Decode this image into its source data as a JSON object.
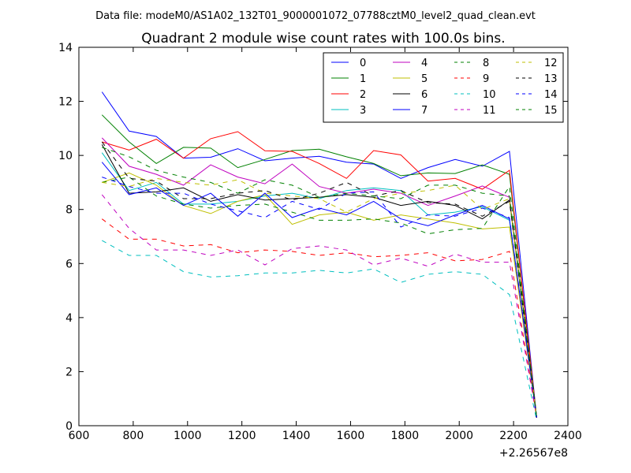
{
  "header": {
    "data_file": "Data file: modeM0/AS1A02_132T01_9000001072_07788cztM0_level2_quad_clean.evt"
  },
  "chart_data": {
    "type": "line",
    "title": "Quadrant 2 module wise count rates with 100.0s bins.",
    "xlabel": "",
    "ylabel": "",
    "x_offset_label": "+2.26567e8",
    "xlim": [
      600,
      2400
    ],
    "ylim": [
      0,
      14
    ],
    "x_ticks": [
      600,
      800,
      1000,
      1200,
      1400,
      1600,
      1800,
      2000,
      2200,
      2400
    ],
    "y_ticks": [
      0,
      2,
      4,
      6,
      8,
      10,
      12,
      14
    ],
    "grid": false,
    "legend_position": "top-right",
    "x": [
      685,
      785,
      885,
      985,
      1085,
      1185,
      1285,
      1385,
      1485,
      1585,
      1685,
      1785,
      1885,
      1985,
      2085,
      2185,
      2285
    ],
    "series": [
      {
        "name": "0",
        "color": "#0000ff",
        "dash": "solid",
        "values": [
          12.35,
          10.9,
          10.7,
          9.9,
          9.93,
          10.25,
          9.8,
          9.9,
          9.97,
          9.75,
          9.68,
          9.15,
          9.55,
          9.85,
          9.6,
          10.15,
          0.3
        ]
      },
      {
        "name": "1",
        "color": "#008000",
        "dash": "solid",
        "values": [
          11.5,
          10.5,
          9.7,
          10.3,
          10.27,
          9.55,
          9.85,
          10.18,
          10.23,
          9.95,
          9.7,
          9.25,
          9.35,
          9.33,
          9.65,
          9.3,
          0.3
        ]
      },
      {
        "name": "2",
        "color": "#ff0000",
        "dash": "solid",
        "values": [
          10.5,
          10.2,
          10.6,
          9.9,
          10.62,
          10.88,
          10.17,
          10.15,
          9.7,
          9.15,
          10.18,
          10.02,
          9.05,
          9.15,
          8.75,
          9.45,
          0.3
        ]
      },
      {
        "name": "3",
        "color": "#00bfbf",
        "dash": "solid",
        "values": [
          10.1,
          8.7,
          9.0,
          8.2,
          8.2,
          8.3,
          8.5,
          8.6,
          8.4,
          8.7,
          8.8,
          8.7,
          7.8,
          7.9,
          8.1,
          7.6,
          0.3
        ]
      },
      {
        "name": "4",
        "color": "#bf00bf",
        "dash": "solid",
        "values": [
          10.65,
          9.6,
          9.3,
          8.9,
          9.65,
          9.2,
          8.95,
          9.68,
          8.85,
          8.6,
          8.75,
          8.6,
          8.15,
          8.5,
          8.87,
          8.45,
          0.3
        ]
      },
      {
        "name": "5",
        "color": "#bfbf00",
        "dash": "solid",
        "values": [
          9.0,
          9.35,
          8.9,
          8.15,
          7.85,
          8.3,
          8.55,
          7.45,
          7.8,
          7.9,
          7.6,
          7.8,
          7.65,
          7.5,
          7.28,
          7.35,
          0.3
        ]
      },
      {
        "name": "6",
        "color": "#000000",
        "dash": "solid",
        "values": [
          10.4,
          8.6,
          8.65,
          8.8,
          8.3,
          8.55,
          8.35,
          8.4,
          8.45,
          8.55,
          8.45,
          8.15,
          8.3,
          8.15,
          7.65,
          8.35,
          0.3
        ]
      },
      {
        "name": "7",
        "color": "#0000ff",
        "dash": "solid",
        "values": [
          9.75,
          8.55,
          8.8,
          8.15,
          8.6,
          7.75,
          8.6,
          7.7,
          8.05,
          7.8,
          8.3,
          7.65,
          7.4,
          7.8,
          8.15,
          7.65,
          0.3
        ]
      },
      {
        "name": "8",
        "color": "#008000",
        "dash": "dashed",
        "values": [
          9.0,
          9.2,
          8.5,
          8.2,
          8.05,
          8.15,
          8.2,
          7.9,
          7.6,
          7.6,
          7.65,
          7.5,
          7.1,
          7.25,
          7.3,
          8.85,
          0.3
        ]
      },
      {
        "name": "9",
        "color": "#ff0000",
        "dash": "dashed",
        "values": [
          7.65,
          6.9,
          6.9,
          6.65,
          6.7,
          6.4,
          6.5,
          6.45,
          6.3,
          6.4,
          6.25,
          6.3,
          6.4,
          6.1,
          6.15,
          6.45,
          0.3
        ]
      },
      {
        "name": "10",
        "color": "#00bfbf",
        "dash": "dashed",
        "values": [
          6.85,
          6.3,
          6.3,
          5.7,
          5.5,
          5.55,
          5.65,
          5.65,
          5.75,
          5.65,
          5.8,
          5.3,
          5.6,
          5.7,
          5.6,
          4.85,
          0.2
        ]
      },
      {
        "name": "11",
        "color": "#bf00bf",
        "dash": "dashed",
        "values": [
          8.55,
          7.3,
          6.5,
          6.5,
          6.3,
          6.5,
          5.95,
          6.55,
          6.65,
          6.5,
          5.95,
          6.2,
          5.9,
          6.35,
          6.05,
          6.05,
          0.3
        ]
      },
      {
        "name": "12",
        "color": "#bfbf00",
        "dash": "dashed",
        "values": [
          9.0,
          8.85,
          9.15,
          9.0,
          8.9,
          9.1,
          8.6,
          8.5,
          8.4,
          7.9,
          8.4,
          8.6,
          8.7,
          8.9,
          8.0,
          8.4,
          0.3
        ]
      },
      {
        "name": "13",
        "color": "#000000",
        "dash": "dashed",
        "values": [
          10.5,
          9.15,
          9.05,
          8.4,
          8.4,
          8.6,
          8.7,
          8.35,
          8.6,
          9.0,
          8.5,
          8.7,
          8.25,
          8.2,
          7.75,
          8.3,
          0.3
        ]
      },
      {
        "name": "14",
        "color": "#0000ff",
        "dash": "dashed",
        "values": [
          9.2,
          8.85,
          8.6,
          8.6,
          8.2,
          7.95,
          7.7,
          8.3,
          8.0,
          8.6,
          8.65,
          7.35,
          7.8,
          7.75,
          8.05,
          7.7,
          0.3
        ]
      },
      {
        "name": "15",
        "color": "#008000",
        "dash": "dashed",
        "values": [
          10.3,
          9.95,
          9.45,
          9.2,
          9.0,
          8.6,
          9.1,
          8.9,
          8.45,
          8.6,
          8.5,
          8.4,
          8.9,
          8.9,
          8.6,
          8.5,
          0.3
        ]
      }
    ]
  }
}
